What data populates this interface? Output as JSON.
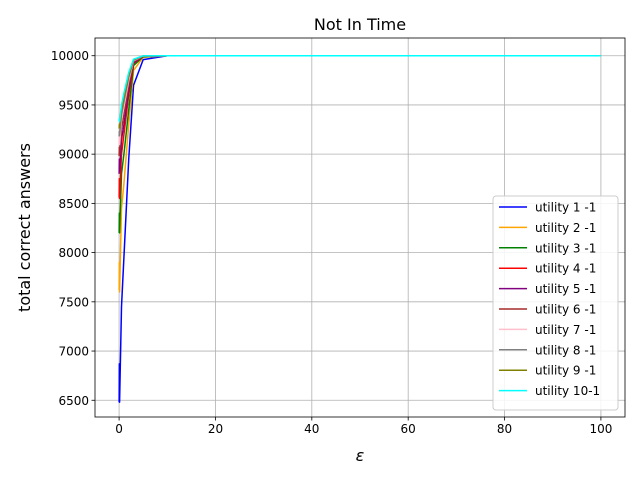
{
  "chart_data": {
    "type": "line",
    "title": "Not In Time",
    "xlabel": "ε",
    "ylabel": "total correct answers",
    "xlim": [
      -5,
      105
    ],
    "ylim": [
      6330,
      10180
    ],
    "xticks": [
      0,
      20,
      40,
      60,
      80,
      100
    ],
    "yticks": [
      6500,
      7000,
      7500,
      8000,
      8500,
      9000,
      9500,
      10000
    ],
    "grid": true,
    "legend_position": "lower-right",
    "x": [
      0.01,
      0.05,
      0.1,
      0.5,
      1,
      2,
      3,
      5,
      10,
      20,
      50,
      100
    ],
    "series": [
      {
        "name": "utility 1 -1",
        "color": "#0000ff",
        "values": [
          6480,
          6870,
          6480,
          7450,
          7950,
          8950,
          9700,
          9960,
          10000,
          10000,
          10000,
          10000
        ]
      },
      {
        "name": "utility 2 -1",
        "color": "#ffa500",
        "values": [
          7620,
          7900,
          7600,
          8450,
          8700,
          9300,
          9850,
          9985,
          10000,
          10000,
          10000,
          10000
        ]
      },
      {
        "name": "utility 3 -1",
        "color": "#008000",
        "values": [
          8200,
          8400,
          8200,
          8800,
          9000,
          9450,
          9900,
          9990,
          10000,
          10000,
          10000,
          10000
        ]
      },
      {
        "name": "utility 4 -1",
        "color": "#ff0000",
        "values": [
          8560,
          8750,
          8550,
          9000,
          9200,
          9600,
          9920,
          9995,
          10000,
          10000,
          10000,
          10000
        ]
      },
      {
        "name": "utility 5 -1",
        "color": "#800080",
        "values": [
          8800,
          8950,
          8820,
          9150,
          9300,
          9650,
          9930,
          9995,
          10000,
          10000,
          10000,
          10000
        ]
      },
      {
        "name": "utility 6 -1",
        "color": "#a52a2a",
        "values": [
          8980,
          9070,
          9000,
          9250,
          9400,
          9700,
          9940,
          9997,
          10000,
          10000,
          10000,
          10000
        ]
      },
      {
        "name": "utility 7 -1",
        "color": "#ffc0cb",
        "values": [
          9100,
          9170,
          9100,
          9350,
          9480,
          9750,
          9950,
          9998,
          10000,
          10000,
          10000,
          10000
        ]
      },
      {
        "name": "utility 8 -1",
        "color": "#808080",
        "values": [
          9180,
          9230,
          9190,
          9400,
          9530,
          9780,
          9955,
          9998,
          10000,
          10000,
          10000,
          10000
        ]
      },
      {
        "name": "utility 9 -1",
        "color": "#808000",
        "values": [
          9260,
          9300,
          9270,
          9450,
          9570,
          9800,
          9960,
          9999,
          10000,
          10000,
          10000,
          10000
        ]
      },
      {
        "name": "utility 10-1",
        "color": "#00ffff",
        "values": [
          9340,
          9360,
          9330,
          9500,
          9620,
          9830,
          9965,
          9999,
          10000,
          10000,
          10000,
          10000
        ]
      }
    ]
  }
}
